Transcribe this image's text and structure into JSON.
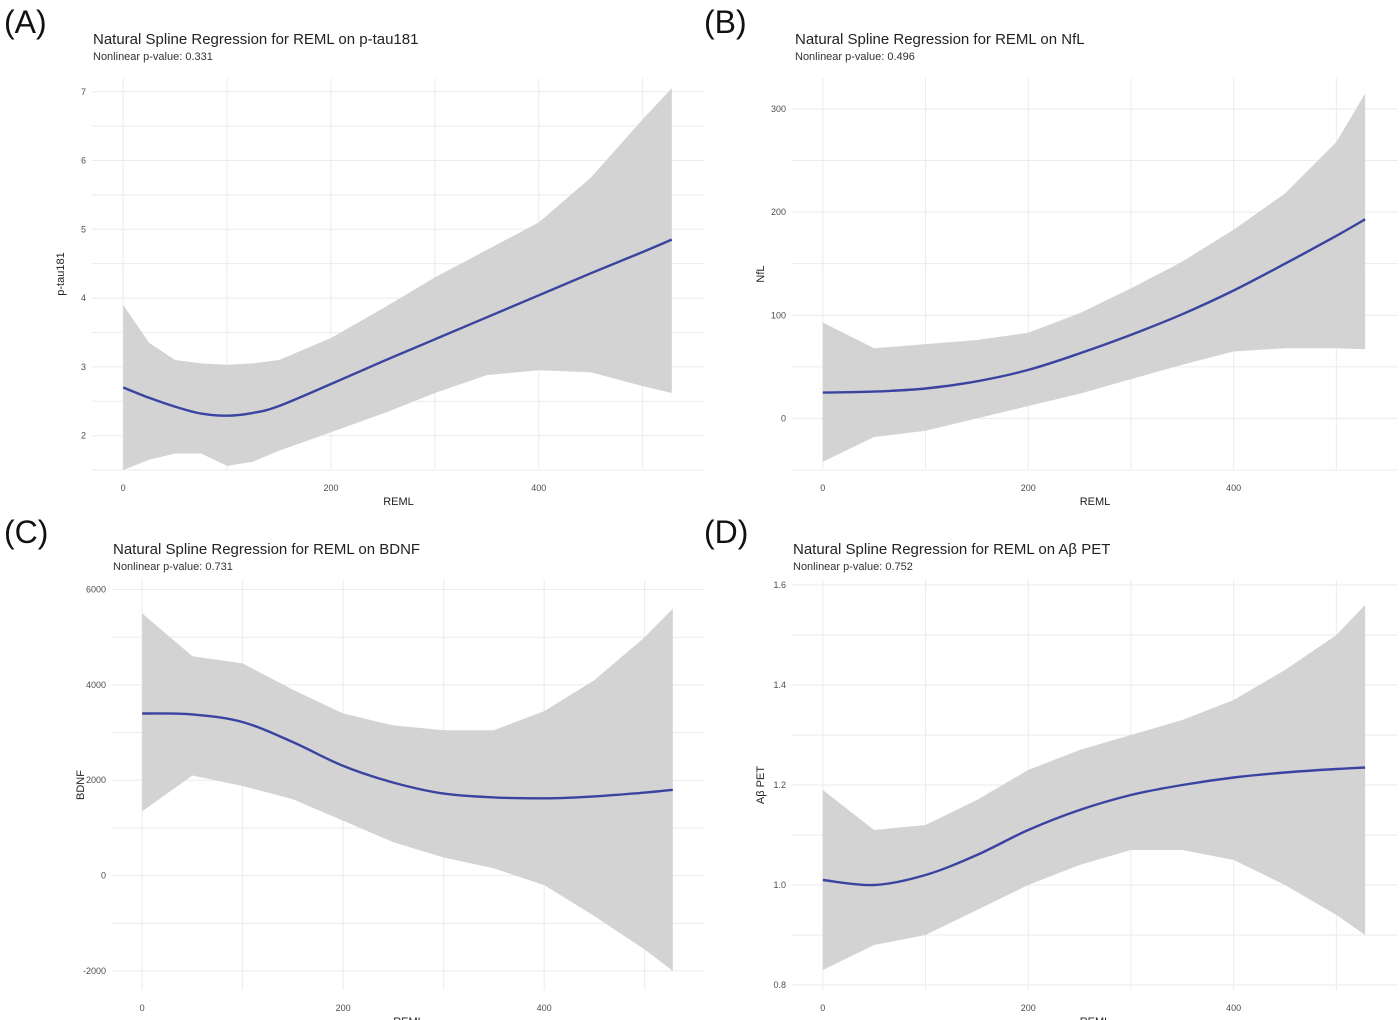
{
  "chart_data": [
    {
      "type": "line",
      "panel_label": "(A)",
      "title": "Natural Spline Regression for REML on p-tau181",
      "subtitle": "Nonlinear p-value: 0.331",
      "xlabel": "REML",
      "ylabel": "p-tau181",
      "xlim": [
        -30,
        560
      ],
      "ylim": [
        1.5,
        7.2
      ],
      "xticks": [
        0,
        200,
        400
      ],
      "yticks": [
        2,
        3,
        4,
        5,
        6,
        7
      ],
      "x": [
        0,
        25,
        50,
        75,
        100,
        125,
        150,
        200,
        250,
        300,
        350,
        400,
        450,
        500,
        528
      ],
      "fit": [
        2.7,
        2.55,
        2.42,
        2.32,
        2.29,
        2.33,
        2.43,
        2.75,
        3.08,
        3.4,
        3.72,
        4.04,
        4.36,
        4.67,
        4.85
      ],
      "lower": [
        1.5,
        1.65,
        1.74,
        1.74,
        1.56,
        1.62,
        1.78,
        2.05,
        2.32,
        2.62,
        2.88,
        2.95,
        2.92,
        2.72,
        2.62
      ],
      "upper": [
        3.9,
        3.35,
        3.1,
        3.05,
        3.03,
        3.05,
        3.1,
        3.42,
        3.85,
        4.3,
        4.7,
        5.1,
        5.75,
        6.6,
        7.05
      ],
      "series": [
        {
          "name": "fit"
        },
        {
          "name": "95% CI"
        }
      ]
    },
    {
      "type": "line",
      "panel_label": "(B)",
      "title": "Natural Spline Regression for REML on NfL",
      "subtitle": "Nonlinear p-value: 0.496",
      "xlabel": "REML",
      "ylabel": "NfL",
      "xlim": [
        -30,
        560
      ],
      "ylim": [
        -50,
        330
      ],
      "xticks": [
        0,
        200,
        400
      ],
      "yticks": [
        0,
        100,
        200,
        300
      ],
      "x": [
        0,
        50,
        100,
        150,
        200,
        250,
        300,
        350,
        400,
        450,
        500,
        528
      ],
      "fit": [
        25,
        26,
        29,
        36,
        47,
        63,
        81,
        101,
        124,
        150,
        177,
        193
      ],
      "lower": [
        -42,
        -18,
        -12,
        0,
        12,
        24,
        38,
        52,
        65,
        68,
        68,
        67
      ],
      "upper": [
        93,
        68,
        72,
        76,
        83,
        102,
        126,
        152,
        183,
        218,
        268,
        315
      ],
      "series": [
        {
          "name": "fit"
        },
        {
          "name": "95% CI"
        }
      ]
    },
    {
      "type": "line",
      "panel_label": "(C)",
      "title": "Natural Spline Regression for REML on BDNF",
      "subtitle": "Nonlinear p-value: 0.731",
      "xlabel": "REML",
      "ylabel": "BDNF",
      "xlim": [
        -30,
        560
      ],
      "ylim": [
        -2400,
        6200
      ],
      "xticks": [
        0,
        200,
        400
      ],
      "yticks": [
        -2000,
        0,
        2000,
        4000,
        6000
      ],
      "x": [
        0,
        50,
        100,
        150,
        200,
        250,
        300,
        350,
        400,
        450,
        500,
        528
      ],
      "fit": [
        3400,
        3380,
        3220,
        2800,
        2300,
        1950,
        1720,
        1640,
        1620,
        1660,
        1740,
        1800
      ],
      "lower": [
        1350,
        2100,
        1880,
        1600,
        1150,
        700,
        380,
        150,
        -200,
        -850,
        -1550,
        -2000
      ],
      "upper": [
        5500,
        4600,
        4450,
        3900,
        3400,
        3150,
        3050,
        3050,
        3450,
        4100,
        5000,
        5600
      ],
      "series": [
        {
          "name": "fit"
        },
        {
          "name": "95% CI"
        }
      ]
    },
    {
      "type": "line",
      "panel_label": "(D)",
      "title": "Natural Spline Regression for REML on Aβ PET",
      "subtitle": "Nonlinear p-value: 0.752",
      "xlabel": "REML",
      "ylabel": "Aβ PET",
      "xlim": [
        -30,
        560
      ],
      "ylim": [
        0.79,
        1.61
      ],
      "xticks": [
        0,
        200,
        400
      ],
      "yticks": [
        0.8,
        1.0,
        1.2,
        1.4,
        1.6
      ],
      "x": [
        0,
        50,
        100,
        150,
        200,
        250,
        300,
        350,
        400,
        450,
        500,
        528
      ],
      "fit": [
        1.01,
        1.0,
        1.02,
        1.06,
        1.11,
        1.15,
        1.18,
        1.2,
        1.215,
        1.225,
        1.232,
        1.235
      ],
      "lower": [
        0.83,
        0.88,
        0.9,
        0.95,
        1.0,
        1.04,
        1.07,
        1.07,
        1.05,
        1.0,
        0.94,
        0.9
      ],
      "upper": [
        1.19,
        1.11,
        1.12,
        1.17,
        1.23,
        1.27,
        1.3,
        1.33,
        1.37,
        1.43,
        1.5,
        1.56
      ],
      "series": [
        {
          "name": "fit"
        },
        {
          "name": "95% CI"
        }
      ]
    }
  ],
  "colors": {
    "fit_line": "#3a44a0",
    "ci_band": "#d3d3d3",
    "grid": "#ebebeb"
  }
}
